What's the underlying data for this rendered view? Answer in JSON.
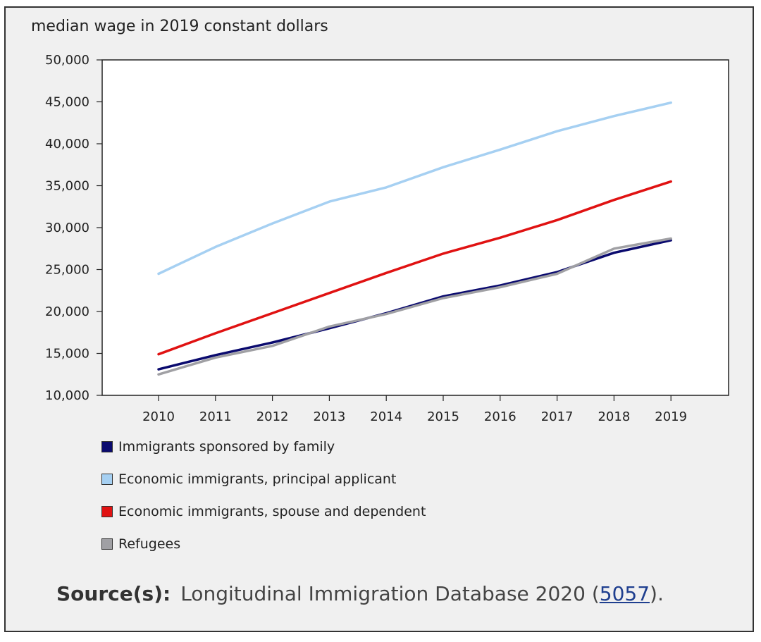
{
  "chart_data": {
    "type": "line",
    "ylabel": "median wage in 2019 constant dollars",
    "xlabel": "",
    "x": [
      "2010",
      "2011",
      "2012",
      "2013",
      "2014",
      "2015",
      "2016",
      "2017",
      "2018",
      "2019"
    ],
    "ylim": [
      10000,
      50000
    ],
    "yticks": [
      10000,
      15000,
      20000,
      25000,
      30000,
      35000,
      40000,
      45000,
      50000
    ],
    "ytick_labels": [
      "10,000",
      "15,000",
      "20,000",
      "25,000",
      "30,000",
      "35,000",
      "40,000",
      "45,000",
      "50,000"
    ],
    "grid": false,
    "legend_position": "bottom",
    "series": [
      {
        "name": "Immigrants sponsored by family",
        "color": "#0a0a6e",
        "values": [
          13100,
          14800,
          16300,
          18000,
          19800,
          21800,
          23100,
          24700,
          27000,
          28500
        ]
      },
      {
        "name": "Economic immigrants, principal applicant",
        "color": "#a6d0f2",
        "values": [
          24500,
          27700,
          30500,
          33100,
          34800,
          37200,
          39300,
          41500,
          43300,
          44900
        ]
      },
      {
        "name": "Economic immigrants, spouse and dependent",
        "color": "#e01212",
        "values": [
          14900,
          17400,
          19800,
          22200,
          24600,
          26900,
          28800,
          30900,
          33300,
          35500
        ]
      },
      {
        "name": "Refugees",
        "color": "#a0a0a4",
        "values": [
          12500,
          14500,
          15900,
          18200,
          19700,
          21600,
          22900,
          24500,
          27500,
          28700
        ]
      }
    ]
  },
  "source": {
    "title": "Source(s):",
    "text": "Longitudinal Immigration Database 2020 (",
    "link": "5057",
    "suffix": ")."
  }
}
